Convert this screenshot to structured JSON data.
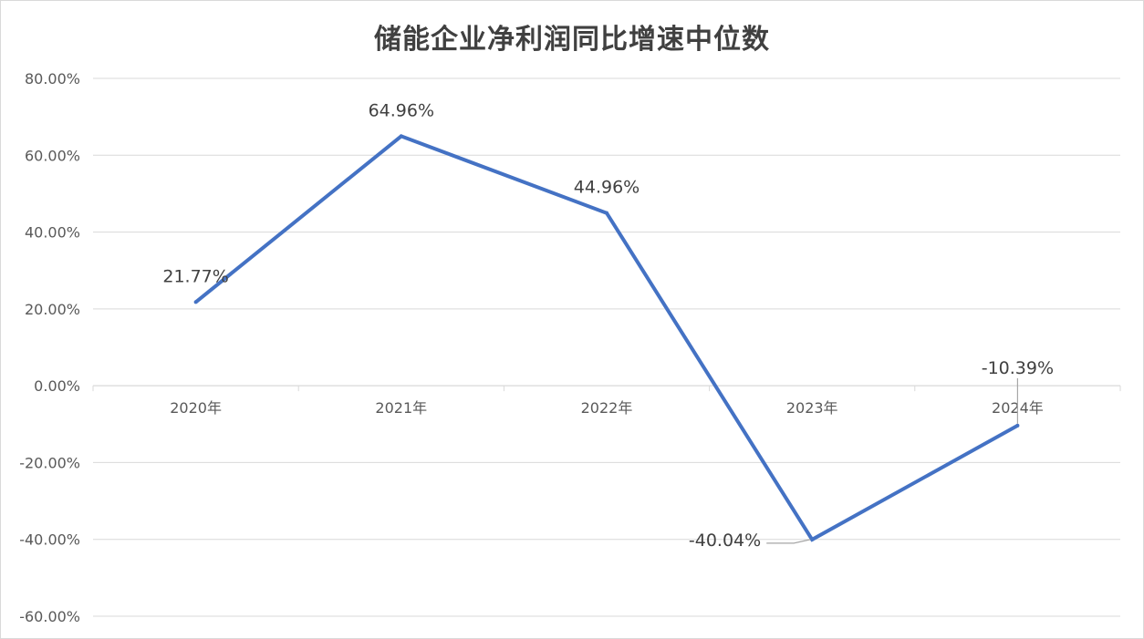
{
  "chart_data": {
    "type": "line",
    "title": "储能企业净利润同比增速中位数",
    "categories": [
      "2020年",
      "2021年",
      "2022年",
      "2023年",
      "2024年"
    ],
    "series": [
      {
        "values": [
          21.77,
          64.96,
          44.96,
          -40.04,
          -10.39
        ]
      }
    ],
    "data_labels": [
      "21.77%",
      "64.96%",
      "44.96%",
      "-40.04%",
      "-10.39%"
    ],
    "y_ticks": [
      "80.00%",
      "60.00%",
      "40.00%",
      "20.00%",
      "0.00%",
      "-20.00%",
      "-40.00%",
      "-60.00%"
    ],
    "ylim": [
      -60,
      80
    ],
    "grid": true,
    "legend": "none",
    "line_color": "#4472c4",
    "grid_color": "#d9d9d9",
    "leader_color": "#a6a6a6"
  }
}
